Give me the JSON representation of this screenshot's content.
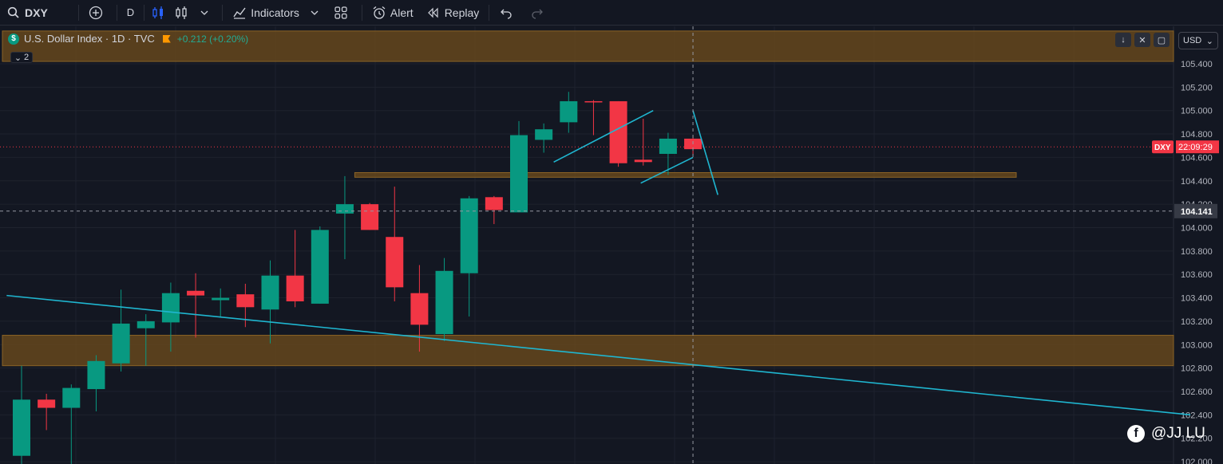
{
  "toolbar": {
    "symbol": "DXY",
    "interval": "D",
    "indicators_label": "Indicators",
    "alert_label": "Alert",
    "replay_label": "Replay"
  },
  "legend": {
    "symbol_badge": "$",
    "title": "U.S. Dollar Index · 1D · TVC",
    "change": "+0.212 (+0.20%)",
    "collapsed_count": "2"
  },
  "currency": "USD",
  "price_badge": {
    "symbol": "DXY",
    "time": "22:09:29",
    "price": 104.69
  },
  "crosshair_price": "104.141",
  "watermark": "@JJ LU",
  "colors": {
    "background": "#131722",
    "up": "#089981",
    "down": "#f23645",
    "zone": "#6b4a1c",
    "trendline": "#1fb6d0",
    "grid": "#1e222d"
  },
  "chart_data": {
    "type": "candlestick",
    "y_ticks": [
      "105.400",
      "105.200",
      "105.000",
      "104.800",
      "104.600",
      "104.400",
      "104.200",
      "104.000",
      "103.800",
      "103.600",
      "103.400",
      "103.200",
      "103.000",
      "102.800",
      "102.600",
      "102.400",
      "102.200",
      "102.000"
    ],
    "ylim": [
      101.98,
      105.72
    ],
    "candles": [
      {
        "o": 102.05,
        "h": 102.82,
        "c": 102.53,
        "l": 101.97
      },
      {
        "o": 102.53,
        "h": 102.58,
        "c": 102.46,
        "l": 102.27
      },
      {
        "o": 102.46,
        "h": 102.66,
        "c": 102.63,
        "l": 101.98
      },
      {
        "o": 102.62,
        "h": 102.91,
        "c": 102.86,
        "l": 102.43
      },
      {
        "o": 102.84,
        "h": 103.47,
        "c": 103.18,
        "l": 102.77
      },
      {
        "o": 103.14,
        "h": 103.26,
        "c": 103.2,
        "l": 102.82
      },
      {
        "o": 103.19,
        "h": 103.53,
        "c": 103.44,
        "l": 102.94
      },
      {
        "o": 103.46,
        "h": 103.61,
        "c": 103.42,
        "l": 103.06
      },
      {
        "o": 103.38,
        "h": 103.48,
        "c": 103.4,
        "l": 103.23
      },
      {
        "o": 103.43,
        "h": 103.52,
        "c": 103.32,
        "l": 103.15
      },
      {
        "o": 103.3,
        "h": 103.72,
        "c": 103.59,
        "l": 103.01
      },
      {
        "o": 103.59,
        "h": 103.98,
        "c": 103.37,
        "l": 103.32
      },
      {
        "o": 103.35,
        "h": 104.01,
        "c": 103.98,
        "l": 103.35
      },
      {
        "o": 104.12,
        "h": 104.44,
        "c": 104.2,
        "l": 103.73
      },
      {
        "o": 104.2,
        "h": 104.21,
        "c": 103.98,
        "l": 103.98
      },
      {
        "o": 103.92,
        "h": 104.35,
        "c": 103.49,
        "l": 103.37
      },
      {
        "o": 103.44,
        "h": 103.68,
        "c": 103.17,
        "l": 102.94
      },
      {
        "o": 103.09,
        "h": 103.74,
        "c": 103.63,
        "l": 103.03
      },
      {
        "o": 103.61,
        "h": 104.27,
        "c": 104.25,
        "l": 103.24
      },
      {
        "o": 104.26,
        "h": 104.27,
        "c": 104.15,
        "l": 104.03
      },
      {
        "o": 104.13,
        "h": 104.91,
        "c": 104.79,
        "l": 104.13
      },
      {
        "o": 104.75,
        "h": 104.89,
        "c": 104.84,
        "l": 104.64
      },
      {
        "o": 104.9,
        "h": 105.16,
        "c": 105.08,
        "l": 104.81
      },
      {
        "o": 105.08,
        "h": 105.09,
        "c": 105.07,
        "l": 104.79
      },
      {
        "o": 105.08,
        "h": 105.08,
        "c": 104.55,
        "l": 104.52
      },
      {
        "o": 104.58,
        "h": 104.93,
        "c": 104.56,
        "l": 104.53
      },
      {
        "o": 104.63,
        "h": 104.81,
        "c": 104.76,
        "l": 104.45
      },
      {
        "o": 104.76,
        "h": 104.78,
        "c": 104.67,
        "l": 104.62
      }
    ],
    "zones": [
      {
        "from": 105.42,
        "to": 105.68,
        "x_start": 0,
        "x_end": 1
      },
      {
        "from": 104.43,
        "to": 104.47,
        "x_start": 13.4,
        "x_end": 40
      },
      {
        "from": 102.82,
        "to": 103.08,
        "x_start": 0,
        "x_end": 1
      }
    ],
    "lines": [
      {
        "points": [
          [
            -0.6,
            103.42
          ],
          [
            47,
            102.4
          ]
        ]
      },
      {
        "points": [
          [
            21.4,
            104.56
          ],
          [
            25.4,
            105.0
          ]
        ]
      },
      {
        "points": [
          [
            24.9,
            104.38
          ],
          [
            27.0,
            104.6
          ]
        ]
      },
      {
        "points": [
          [
            27.0,
            105.0
          ],
          [
            28.0,
            104.28
          ]
        ]
      }
    ],
    "crosshair": {
      "index": 27.0,
      "price": 104.141
    }
  }
}
